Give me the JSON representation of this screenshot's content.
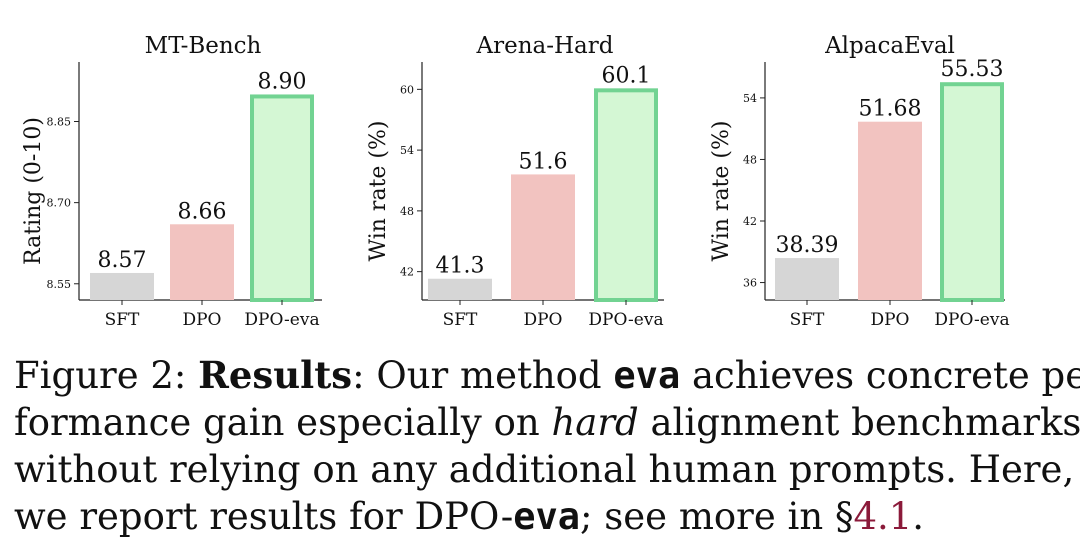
{
  "chart_data": [
    {
      "type": "bar",
      "title": "MT-Bench",
      "ylabel": "Rating (0-10)",
      "categories": [
        "SFT",
        "DPO",
        "DPO-eva"
      ],
      "values": [
        8.57,
        8.66,
        8.9
      ],
      "value_labels": [
        "8.57",
        "8.66",
        "8.90"
      ],
      "yticks": [
        "8.55",
        "8.70",
        "8.85"
      ],
      "ylim": [
        8.52,
        8.96
      ]
    },
    {
      "type": "bar",
      "title": "Arena-Hard",
      "ylabel": "Win rate (%)",
      "categories": [
        "SFT",
        "DPO",
        "DPO-eva"
      ],
      "values": [
        41.3,
        51.6,
        60.1
      ],
      "value_labels": [
        "41.3",
        "51.6",
        "60.1"
      ],
      "yticks": [
        "42",
        "48",
        "54",
        "60"
      ],
      "ylim": [
        39.2,
        62.7
      ]
    },
    {
      "type": "bar",
      "title": "AlpacaEval",
      "ylabel": "Win rate (%)",
      "categories": [
        "SFT",
        "DPO",
        "DPO-eva"
      ],
      "values": [
        38.39,
        51.68,
        55.53
      ],
      "value_labels": [
        "38.39",
        "51.68",
        "55.53"
      ],
      "yticks": [
        "36",
        "42",
        "48",
        "54"
      ],
      "ylim": [
        34.3,
        57.5
      ]
    }
  ],
  "colors": {
    "bar_fills": [
      "#d6d6d6",
      "#f2c3c0",
      "#d4f7d4"
    ],
    "highlight_stroke": "#72d392"
  },
  "caption": {
    "l1_a": "Figure 2: ",
    "l1_b": "Results",
    "l1_c": ": Our method ",
    "l1_d": "eva",
    "l1_e": " achieves concrete per-",
    "l2_a": "formance gain especially on ",
    "l2_b": "hard",
    "l2_c": " alignment benchmarks,",
    "l3": "without relying on any additional human prompts. Here,",
    "l4_a": "we report results for DPO-",
    "l4_b": "eva",
    "l4_c": "; see more in §",
    "l4_d": "4.1",
    "l4_e": "."
  }
}
